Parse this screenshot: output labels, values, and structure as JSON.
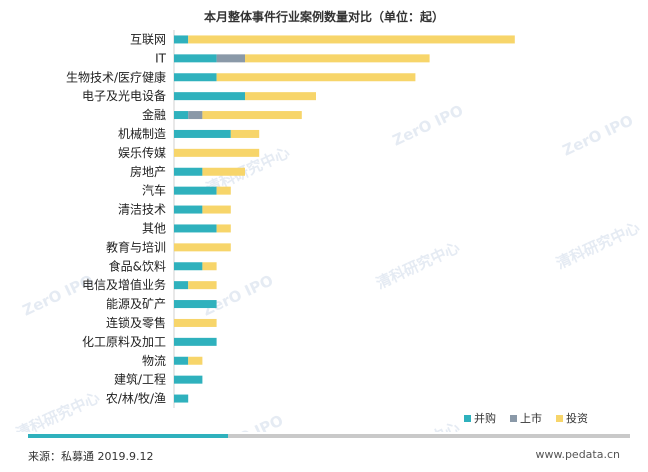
{
  "chart_data": {
    "type": "bar",
    "orientation": "horizontal",
    "stacked": true,
    "title": "本月整体事件行业案例数量对比（单位：起）",
    "categories": [
      "互联网",
      "IT",
      "生物技术/医疗健康",
      "电子及光电设备",
      "金融",
      "机械制造",
      "娱乐传媒",
      "房地产",
      "汽车",
      "清洁技术",
      "其他",
      "教育与培训",
      "食品&饮料",
      "电信及增值业务",
      "能源及矿产",
      "连锁及零售",
      "化工原料及加工",
      "物流",
      "建筑/工程",
      "农/林/牧/渔"
    ],
    "series": [
      {
        "name": "并购",
        "color": "#2fb1bd",
        "values": [
          1,
          3,
          3,
          5,
          1,
          4,
          0,
          2,
          3,
          2,
          3,
          0,
          2,
          1,
          3,
          0,
          3,
          1,
          2,
          1
        ]
      },
      {
        "name": "上市",
        "color": "#8a99a8",
        "values": [
          0,
          2,
          0,
          0,
          1,
          0,
          0,
          0,
          0,
          0,
          0,
          0,
          0,
          0,
          0,
          0,
          0,
          0,
          0,
          0
        ]
      },
      {
        "name": "投资",
        "color": "#f7d56a",
        "values": [
          23,
          13,
          14,
          5,
          7,
          2,
          6,
          3,
          1,
          2,
          1,
          4,
          1,
          2,
          0,
          3,
          0,
          1,
          0,
          0
        ]
      }
    ],
    "legend_position": "bottom-right",
    "grid": false
  },
  "source": "来源：私募通 2019.9.12",
  "website": "www.pedata.cn",
  "watermarks": [
    "ZerO IPO",
    "清科研究中心",
    "Zero2IPO Research"
  ]
}
